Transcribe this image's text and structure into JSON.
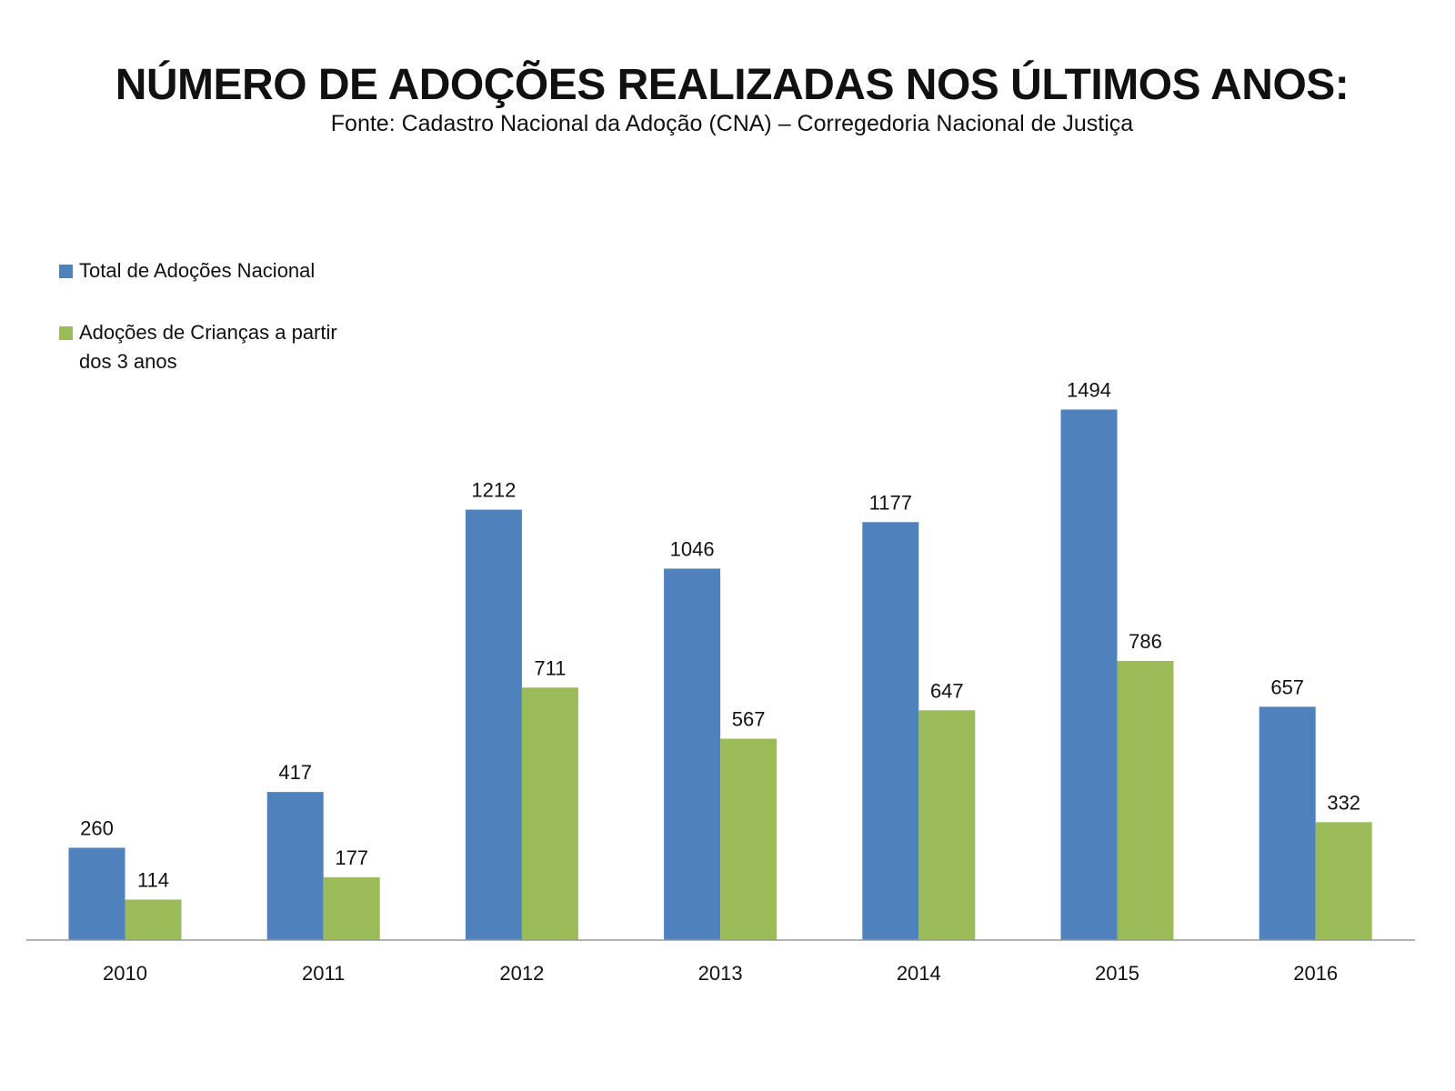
{
  "chart_data": {
    "type": "bar",
    "title": "NÚMERO DE ADOÇÕES REALIZADAS NOS ÚLTIMOS ANOS:",
    "subtitle": "Fonte: Cadastro Nacional da Adoção (CNA) – Corregedoria Nacional de Justiça",
    "categories": [
      "2010",
      "2011",
      "2012",
      "2013",
      "2014",
      "2015",
      "2016"
    ],
    "series": [
      {
        "name": "Total de Adoções Nacional",
        "color": "#4f81bd",
        "values": [
          260,
          417,
          1212,
          1046,
          1177,
          1494,
          657
        ]
      },
      {
        "name": "Adoções de Crianças a partir dos 3 anos",
        "color": "#9bbb59",
        "values": [
          114,
          177,
          711,
          567,
          647,
          786,
          332
        ]
      }
    ],
    "data_labels": true,
    "ylim": [
      0,
      1500
    ],
    "grid": false,
    "legend_position": "top-left",
    "axis_color": "#999999"
  }
}
